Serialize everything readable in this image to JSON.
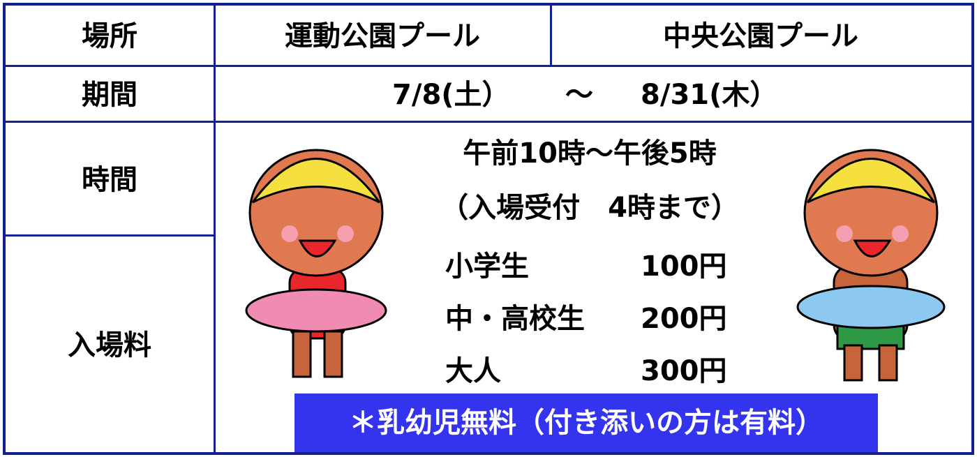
{
  "table": {
    "header": [
      "場所",
      "運動公園プール",
      "中央公園プール"
    ],
    "period": {
      "label": "期間",
      "start": "7/8(土）",
      "separator": "～",
      "end": "8/31(木）"
    },
    "hours": {
      "label": "時間",
      "lines": [
        "午前10時～午後5時",
        "（入場受付　4時まで）"
      ]
    },
    "fees": {
      "label": "入場料",
      "items": [
        {
          "name": "小学生",
          "price": "100円"
        },
        {
          "name": "中・高校生",
          "price": "200円"
        },
        {
          "name": "大人",
          "price": "300円"
        }
      ],
      "note": "＊乳幼児無料（付き添いの方は有料）"
    }
  }
}
